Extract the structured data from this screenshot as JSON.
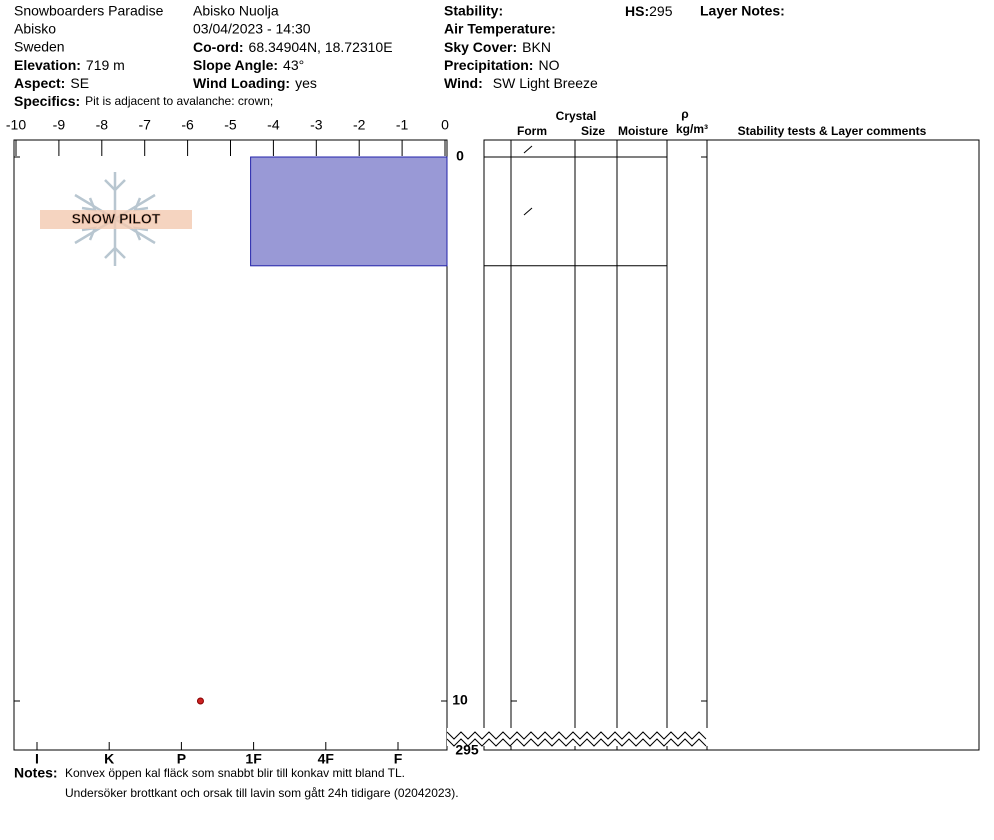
{
  "header": {
    "location": "Snowboarders Paradise",
    "region": "Abisko",
    "country": "Sweden",
    "elevation": {
      "label": "Elevation:",
      "value": "719 m"
    },
    "aspect": {
      "label": "Aspect:",
      "value": "SE"
    },
    "specifics": {
      "label": "Specifics:",
      "value": "Pit is adjacent to avalanche: crown;"
    },
    "site": "Abisko Nuolja",
    "datetime": "03/04/2023 - 14:30",
    "coord": {
      "label": "Co-ord:",
      "value": "68.34904N, 18.72310E"
    },
    "slope_angle": {
      "label": "Slope Angle:",
      "value": "43°"
    },
    "wind_loading": {
      "label": "Wind Loading:",
      "value": "yes"
    },
    "stability": {
      "label": "Stability:"
    },
    "air_temperature": {
      "label": "Air Temperature:"
    },
    "sky_cover": {
      "label": "Sky Cover:",
      "value": "BKN"
    },
    "precipitation": {
      "label": "Precipitation:",
      "value": "NO"
    },
    "wind": {
      "label": "Wind:",
      "value": "SW Light Breeze"
    },
    "hs": {
      "label": "HS:",
      "value": 295
    },
    "layer_notes": {
      "label": "Layer Notes:"
    }
  },
  "logo_text": "SNOW PILOT",
  "profile": {
    "temperature_ticks": [
      -10,
      -9,
      -8,
      -7,
      -6,
      -5,
      -4,
      -3,
      -2,
      -1,
      0
    ],
    "temperature_lim": [
      -10,
      0
    ],
    "depth_ticks": [
      0,
      10,
      295
    ],
    "hardness_ticks": [
      "I",
      "K",
      "P",
      "1F",
      "4F",
      "F"
    ],
    "layers": [
      {
        "top": 0,
        "bottom": 2,
        "hardness": "1F",
        "color": "#9999d6"
      }
    ],
    "temperatures": [
      {
        "depth": 10,
        "temp": -5.7,
        "color": "#cc2222"
      }
    ]
  },
  "table": {
    "crystal": "Crystal",
    "form": "Form",
    "size": "Size",
    "moisture": "Moisture",
    "rho": "ρ",
    "density_unit": "kg/m³",
    "comments": "Stability tests & Layer comments"
  },
  "notes": {
    "label": "Notes:",
    "lines": [
      "Konvex öppen kal fläck som snabbt blir till konkav mitt bland TL.",
      "Undersöker brottkant och orsak till lavin som gått 24h tidigare (02042023)."
    ]
  }
}
